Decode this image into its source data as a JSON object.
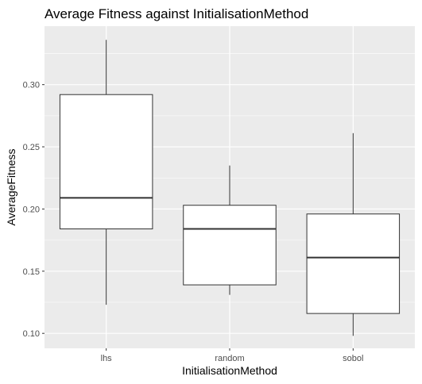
{
  "chart_data": {
    "type": "boxplot",
    "title": "Average Fitness against InitialisationMethod",
    "xlabel": "InitialisationMethod",
    "ylabel": "AverageFitness",
    "categories": [
      "lhs",
      "random",
      "sobol"
    ],
    "boxes": [
      {
        "category": "lhs",
        "min": 0.123,
        "q1": 0.184,
        "median": 0.209,
        "q3": 0.292,
        "max": 0.336
      },
      {
        "category": "random",
        "min": 0.131,
        "q1": 0.139,
        "median": 0.184,
        "q3": 0.203,
        "max": 0.235
      },
      {
        "category": "sobol",
        "min": 0.098,
        "q1": 0.116,
        "median": 0.161,
        "q3": 0.196,
        "max": 0.261
      }
    ],
    "ylim": [
      0.088,
      0.347
    ],
    "yticks": [
      0.1,
      0.15,
      0.2,
      0.25,
      0.3
    ],
    "ytick_labels": [
      "0.10",
      "0.15",
      "0.20",
      "0.25",
      "0.30"
    ],
    "grid": true,
    "colors": {
      "panel_background": "#ebebeb",
      "grid_major": "#ffffff",
      "box_fill": "#ffffff",
      "box_stroke": "#333333",
      "tick_label": "#4d4d4d"
    }
  }
}
